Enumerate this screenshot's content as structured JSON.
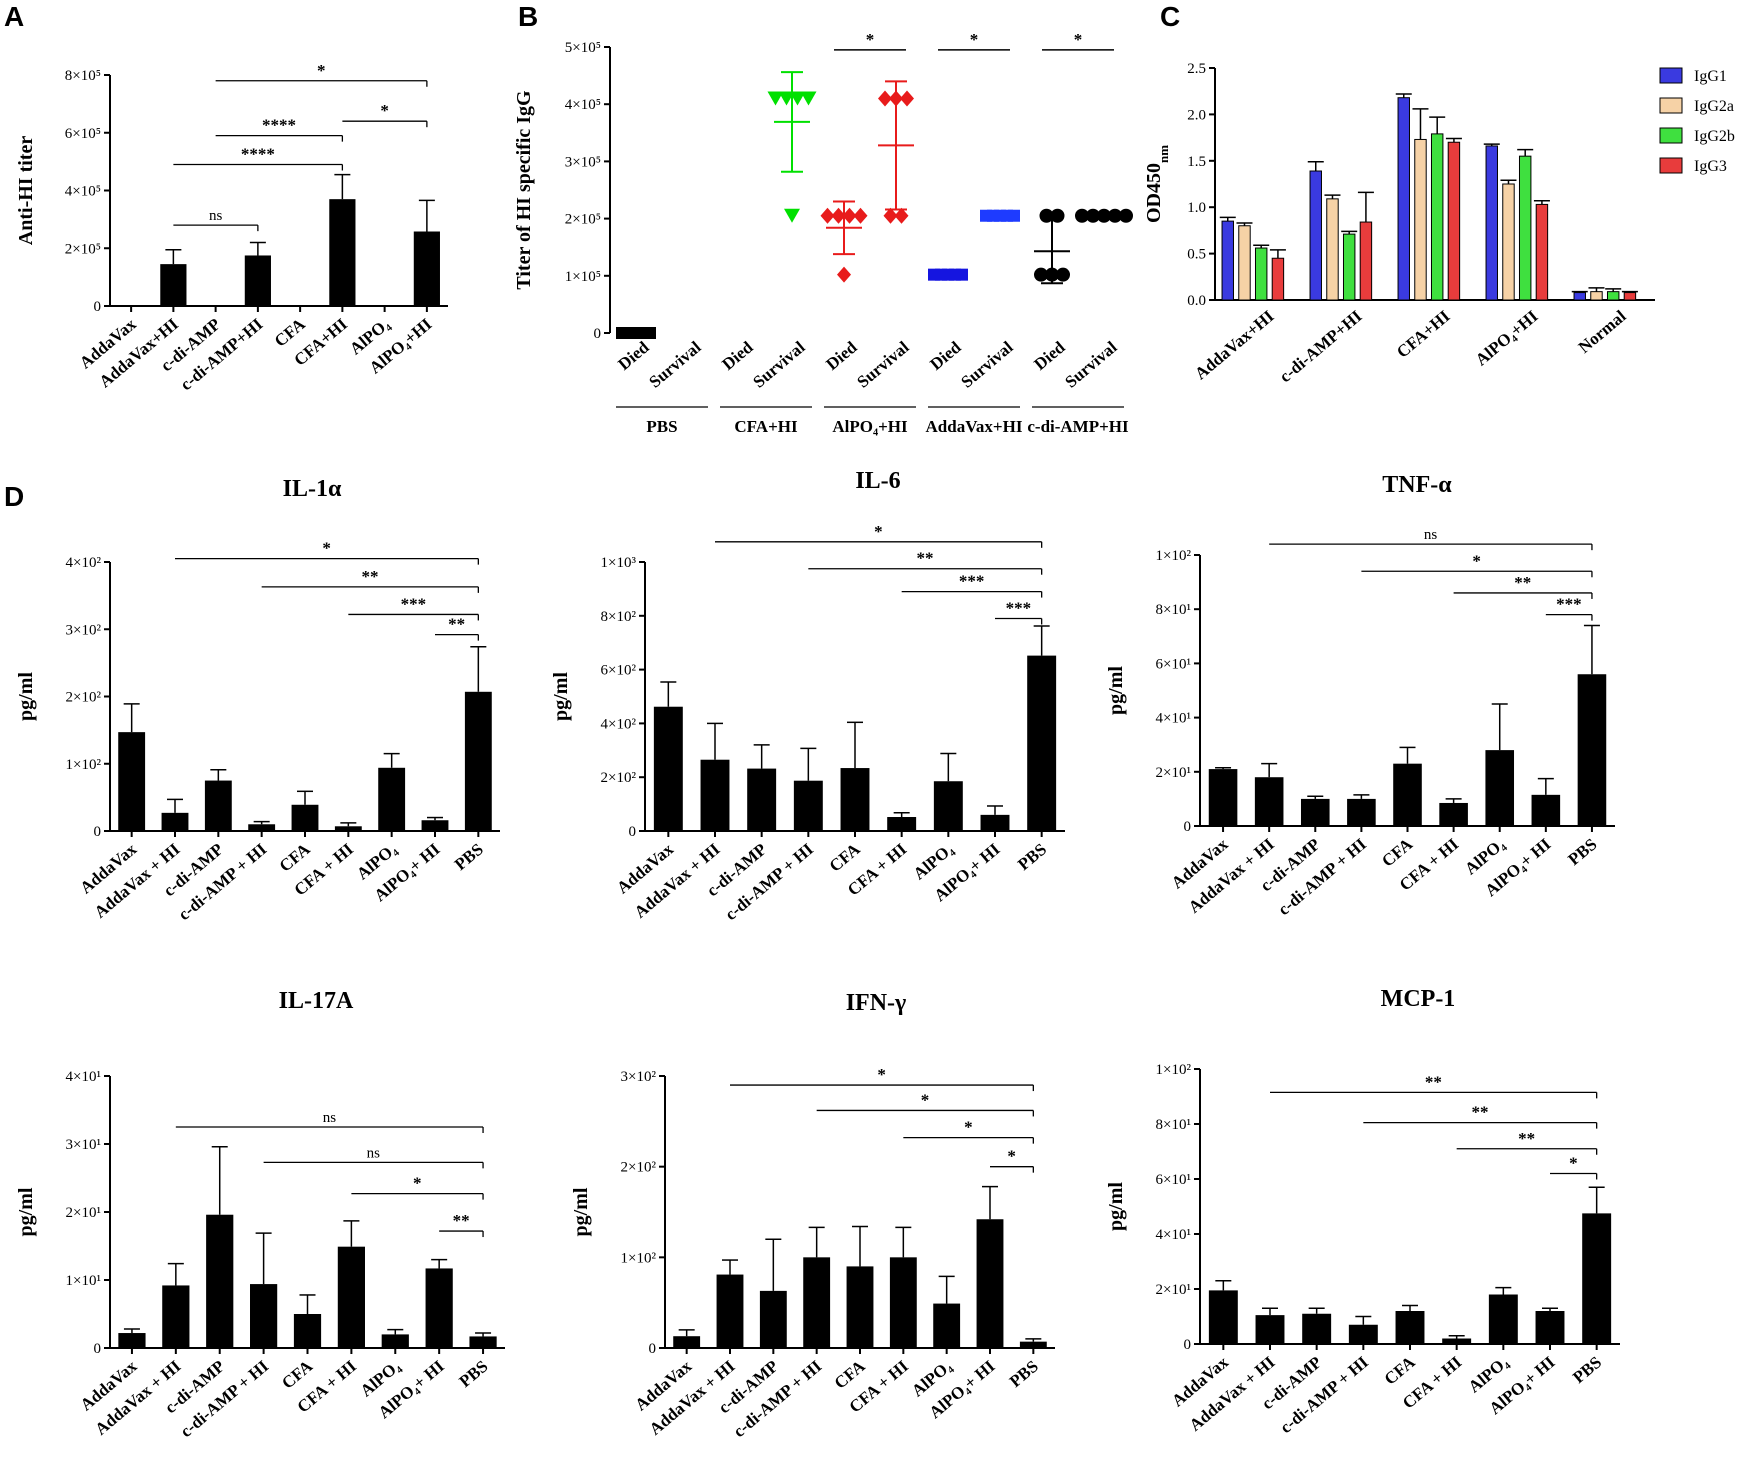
{
  "panel_labels": {
    "A": "A",
    "B": "B",
    "C": "C",
    "D": "D"
  },
  "chart_data": [
    {
      "id": "A",
      "type": "bar",
      "title": "",
      "ylabel": "Anti-HI titer",
      "ylim": [
        0,
        800000
      ],
      "yticks": [
        0,
        200000,
        400000,
        600000,
        800000
      ],
      "yticklabels": [
        "0",
        "2×10⁵",
        "4×10⁵",
        "6×10⁵",
        "8×10⁵"
      ],
      "categories": [
        "AddaVax",
        "AddaVax+HI",
        "c-di-AMP",
        "c-di-AMP+HI",
        "CFA",
        "CFA+HI",
        "AlPO₄",
        "AlPO₄+HI"
      ],
      "values": [
        0,
        145000,
        0,
        175000,
        0,
        370000,
        0,
        258000
      ],
      "errors": [
        0,
        50000,
        0,
        45000,
        0,
        85000,
        0,
        108000
      ],
      "significance": [
        {
          "from": 1,
          "to": 3,
          "label": "ns",
          "y": 280000
        },
        {
          "from": 1,
          "to": 5,
          "label": "****",
          "y": 490000
        },
        {
          "from": 2,
          "to": 5,
          "label": "****",
          "y": 590000
        },
        {
          "from": 5,
          "to": 7,
          "label": "*",
          "y": 640000
        },
        {
          "from": 2,
          "to": 7,
          "label": "*",
          "y": 780000
        }
      ]
    },
    {
      "id": "B",
      "type": "scatter",
      "title": "",
      "ylabel": "Titer of HI specific IgG",
      "ylim": [
        0,
        500000
      ],
      "yticks": [
        0,
        100000,
        200000,
        300000,
        400000,
        500000
      ],
      "yticklabels": [
        "0",
        "1×10⁵",
        "2×10⁵",
        "3×10⁵",
        "4×10⁵",
        "5×10⁵"
      ],
      "categories": [
        "Died",
        "Survival",
        "Died",
        "Survival",
        "Died",
        "Survival",
        "Died",
        "Survival",
        "Died",
        "Survival"
      ],
      "groups": [
        "PBS",
        "CFA+HI",
        "AlPO₄+HI",
        "AddaVax+HI",
        "c-di-AMP+HI"
      ],
      "series": [
        {
          "name": "PBS Died",
          "group": "PBS",
          "color": "#000000",
          "marker": "square",
          "points": [
            0,
            0,
            0,
            0,
            0
          ],
          "mean": 0,
          "sd": 0
        },
        {
          "name": "CFA+HI Survival",
          "group": "CFA+HI",
          "color": "#00e000",
          "marker": "triangle",
          "points": [
            410000,
            410000,
            410000,
            410000,
            205000
          ],
          "mean": 369000,
          "sd": 87000
        },
        {
          "name": "AlPO₄+HI Died",
          "group": "AlPO₄+HI",
          "color": "#e81b1b",
          "marker": "diamond",
          "points": [
            205000,
            205000,
            205000,
            205000,
            102000
          ],
          "mean": 184000,
          "sd": 46000
        },
        {
          "name": "AlPO₄+HI Survival",
          "group": "AlPO₄+HI",
          "color": "#e81b1b",
          "marker": "diamond",
          "points": [
            410000,
            410000,
            410000,
            205000,
            205000
          ],
          "mean": 328000,
          "sd": 112000
        },
        {
          "name": "AddaVax+HI Died",
          "group": "AddaVax+HI",
          "color": "#1515e0",
          "marker": "square",
          "points": [
            102000,
            102000,
            102000,
            102000,
            102000
          ],
          "mean": 102000,
          "sd": 0
        },
        {
          "name": "AddaVax+HI Survival",
          "group": "AddaVax+HI",
          "color": "#1e3bff",
          "marker": "square",
          "points": [
            205000,
            205000,
            205000,
            205000,
            205000
          ],
          "mean": 205000,
          "sd": 0
        },
        {
          "name": "c-di-AMP+HI Died",
          "group": "c-di-AMP+HI",
          "color": "#000000",
          "marker": "circle",
          "points": [
            205000,
            205000,
            102000,
            102000,
            102000
          ],
          "mean": 143000,
          "sd": 56000
        },
        {
          "name": "c-di-AMP+HI Survival",
          "group": "c-di-AMP+HI",
          "color": "#000000",
          "marker": "circle",
          "points": [
            205000,
            205000,
            205000,
            205000,
            205000
          ],
          "mean": 205000,
          "sd": 0
        }
      ],
      "significance": [
        {
          "from": 4,
          "to": 5,
          "label": "*",
          "y": 495000
        },
        {
          "from": 6,
          "to": 7,
          "label": "*",
          "y": 495000
        },
        {
          "from": 8,
          "to": 9,
          "label": "*",
          "y": 495000
        }
      ]
    },
    {
      "id": "C",
      "type": "bar",
      "title": "",
      "ylabel": "OD450",
      "ylabel_sub": "nm",
      "ylim": [
        0,
        2.5
      ],
      "yticks": [
        0,
        0.5,
        1.0,
        1.5,
        2.0,
        2.5
      ],
      "yticklabels": [
        "0.0",
        "0.5",
        "1.0",
        "1.5",
        "2.0",
        "2.5"
      ],
      "categories": [
        "AddaVax+HI",
        "c-di-AMP+HI",
        "CFA+HI",
        "AlPO₄+HI",
        "Normal"
      ],
      "legend_position": "top-right",
      "series": [
        {
          "name": "IgG1",
          "color": "#3a3ae0",
          "values": [
            0.85,
            1.39,
            2.18,
            1.66,
            0.08
          ],
          "errors": [
            0.04,
            0.1,
            0.04,
            0.02,
            0.01
          ]
        },
        {
          "name": "IgG2a",
          "color": "#f6d2a6",
          "values": [
            0.8,
            1.09,
            1.73,
            1.25,
            0.09
          ],
          "errors": [
            0.03,
            0.04,
            0.33,
            0.04,
            0.04
          ]
        },
        {
          "name": "IgG2b",
          "color": "#3fe03f",
          "values": [
            0.56,
            0.71,
            1.79,
            1.55,
            0.09
          ],
          "errors": [
            0.03,
            0.03,
            0.18,
            0.07,
            0.03
          ]
        },
        {
          "name": "IgG3",
          "color": "#e83c3c",
          "values": [
            0.45,
            0.84,
            1.7,
            1.03,
            0.08
          ],
          "errors": [
            0.09,
            0.32,
            0.04,
            0.04,
            0.01
          ]
        }
      ]
    },
    {
      "id": "D1",
      "type": "bar",
      "title": "IL-1α",
      "ylabel": "pg/ml",
      "ylim": [
        0,
        400
      ],
      "yticks": [
        0,
        100,
        200,
        300,
        400
      ],
      "yticklabels": [
        "0",
        "1×10²",
        "2×10²",
        "3×10²",
        "4×10²"
      ],
      "categories": [
        "AddaVax",
        "AddaVax + HI",
        "c-di-AMP",
        "c-di-AMP + HI",
        "CFA",
        "CFA + HI",
        "AlPO₄",
        "AlPO₄+ HI",
        "PBS"
      ],
      "values": [
        147,
        27,
        75,
        10,
        39,
        7,
        94,
        16,
        207
      ],
      "errors": [
        42,
        20,
        16,
        4,
        20,
        5,
        21,
        4,
        67
      ],
      "significance": [
        {
          "from": 1,
          "to": 8,
          "label": "*",
          "y": 405
        },
        {
          "from": 3,
          "to": 8,
          "label": "**",
          "y": 363
        },
        {
          "from": 5,
          "to": 8,
          "label": "***",
          "y": 322
        },
        {
          "from": 7,
          "to": 8,
          "label": "**",
          "y": 292
        }
      ]
    },
    {
      "id": "D2",
      "type": "bar",
      "title": "IL-6",
      "ylabel": "pg/ml",
      "ylim": [
        0,
        1000
      ],
      "yticks": [
        0,
        200,
        400,
        600,
        800,
        1000
      ],
      "yticklabels": [
        "0",
        "2×10²",
        "4×10²",
        "6×10²",
        "8×10²",
        "1×10³"
      ],
      "categories": [
        "AddaVax",
        "AddaVax + HI",
        "c-di-AMP",
        "c-di-AMP + HI",
        "CFA",
        "CFA + HI",
        "AlPO₄",
        "AlPO₄+ HI",
        "PBS"
      ],
      "values": [
        462,
        265,
        232,
        187,
        234,
        52,
        185,
        60,
        652
      ],
      "errors": [
        92,
        135,
        88,
        120,
        170,
        16,
        103,
        33,
        110
      ],
      "significance": [
        {
          "from": 1,
          "to": 8,
          "label": "*",
          "y": 1075
        },
        {
          "from": 3,
          "to": 8,
          "label": "**",
          "y": 975
        },
        {
          "from": 5,
          "to": 8,
          "label": "***",
          "y": 890
        },
        {
          "from": 7,
          "to": 8,
          "label": "***",
          "y": 790
        }
      ]
    },
    {
      "id": "D3",
      "type": "bar",
      "title": "TNF-α",
      "ylabel": "pg/ml",
      "ylim": [
        0,
        100
      ],
      "yticks": [
        0,
        20,
        40,
        60,
        80,
        100
      ],
      "yticklabels": [
        "0",
        "2×10¹",
        "4×10¹",
        "6×10¹",
        "8×10¹",
        "1×10²"
      ],
      "categories": [
        "AddaVax",
        "AddaVax + HI",
        "c-di-AMP",
        "c-di-AMP + HI",
        "CFA",
        "CFA + HI",
        "AlPO₄",
        "AlPO₄+ HI",
        "PBS"
      ],
      "values": [
        21,
        18,
        10,
        10,
        23,
        8.5,
        28,
        11.5,
        56
      ],
      "errors": [
        0.5,
        5,
        1,
        1.5,
        6,
        1.5,
        17,
        6,
        18
      ],
      "significance": [
        {
          "from": 1,
          "to": 8,
          "label": "ns",
          "y": 104
        },
        {
          "from": 3,
          "to": 8,
          "label": "*",
          "y": 94
        },
        {
          "from": 5,
          "to": 8,
          "label": "**",
          "y": 86
        },
        {
          "from": 7,
          "to": 8,
          "label": "***",
          "y": 78
        }
      ]
    },
    {
      "id": "D4",
      "type": "bar",
      "title": "IL-17A",
      "ylabel": "pg/ml",
      "ylim": [
        0,
        40
      ],
      "yticks": [
        0,
        10,
        20,
        30,
        40
      ],
      "yticklabels": [
        "0",
        "1×10¹",
        "2×10¹",
        "3×10¹",
        "4×10¹"
      ],
      "categories": [
        "AddaVax",
        "AddaVax + HI",
        "c-di-AMP",
        "c-di-AMP + HI",
        "CFA",
        "CFA + HI",
        "AlPO₄",
        "AlPO₄+ HI",
        "PBS"
      ],
      "values": [
        2.2,
        9.2,
        19.6,
        9.4,
        5.0,
        14.9,
        2.0,
        11.7,
        1.7
      ],
      "errors": [
        0.6,
        3.2,
        10,
        7.5,
        2.8,
        3.8,
        0.7,
        1.3,
        0.5
      ],
      "significance": [
        {
          "from": 1,
          "to": 8,
          "label": "ns",
          "y": 32.5
        },
        {
          "from": 3,
          "to": 8,
          "label": "ns",
          "y": 27.3
        },
        {
          "from": 5,
          "to": 8,
          "label": "*",
          "y": 22.7
        },
        {
          "from": 7,
          "to": 8,
          "label": "**",
          "y": 17.2
        }
      ]
    },
    {
      "id": "D5",
      "type": "bar",
      "title": "IFN-γ",
      "ylabel": "pg/ml",
      "ylim": [
        0,
        300
      ],
      "yticks": [
        0,
        100,
        200,
        300
      ],
      "yticklabels": [
        "0",
        "1×10²",
        "2×10²",
        "3×10²"
      ],
      "categories": [
        "AddaVax",
        "AddaVax + HI",
        "c-di-AMP",
        "c-di-AMP + HI",
        "CFA",
        "CFA + HI",
        "AlPO₄",
        "AlPO₄+ HI",
        "PBS"
      ],
      "values": [
        13,
        81,
        63,
        100,
        90,
        100,
        49,
        142,
        7
      ],
      "errors": [
        7,
        16,
        57,
        33,
        44,
        33,
        30,
        36,
        3
      ],
      "significance": [
        {
          "from": 1,
          "to": 8,
          "label": "*",
          "y": 290
        },
        {
          "from": 3,
          "to": 8,
          "label": "*",
          "y": 262
        },
        {
          "from": 5,
          "to": 8,
          "label": "*",
          "y": 232
        },
        {
          "from": 7,
          "to": 8,
          "label": "*",
          "y": 200
        }
      ]
    },
    {
      "id": "D6",
      "type": "bar",
      "title": "MCP-1",
      "ylabel": "pg/ml",
      "ylim": [
        0,
        100
      ],
      "yticks": [
        0,
        20,
        40,
        60,
        80,
        100
      ],
      "yticklabels": [
        "0",
        "2×10¹",
        "4×10¹",
        "6×10¹",
        "8×10¹",
        "1×10²"
      ],
      "categories": [
        "AddaVax",
        "AddaVax + HI",
        "c-di-AMP",
        "c-di-AMP + HI",
        "CFA",
        "CFA + HI",
        "AlPO₄",
        "AlPO₄+ HI",
        "PBS"
      ],
      "values": [
        19.5,
        10.5,
        11,
        7,
        12,
        2,
        18,
        12,
        47.5
      ],
      "errors": [
        3.5,
        2.5,
        2,
        3,
        2,
        1,
        2.5,
        1,
        9.5
      ],
      "significance": [
        {
          "from": 1,
          "to": 8,
          "label": "**",
          "y": 91.5
        },
        {
          "from": 3,
          "to": 8,
          "label": "**",
          "y": 80.5
        },
        {
          "from": 5,
          "to": 8,
          "label": "**",
          "y": 71
        },
        {
          "from": 7,
          "to": 8,
          "label": "*",
          "y": 62
        }
      ]
    }
  ]
}
